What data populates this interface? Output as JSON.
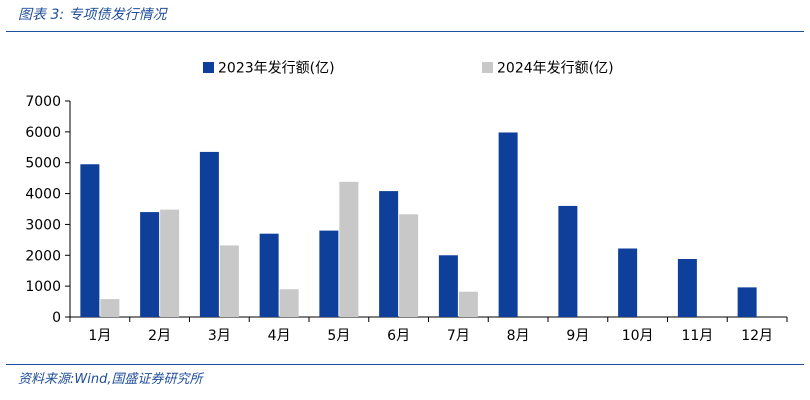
{
  "figure": {
    "title": "图表 3:  专项债发行情况",
    "source": "资料来源:Wind,国盛证券研究所"
  },
  "chart_data": {
    "type": "bar",
    "categories": [
      "1月",
      "2月",
      "3月",
      "4月",
      "5月",
      "6月",
      "7月",
      "8月",
      "9月",
      "10月",
      "11月",
      "12月"
    ],
    "series": [
      {
        "name": "2023年发行额(亿)",
        "color": "#0d3f9b",
        "values": [
          4950,
          3400,
          5350,
          2700,
          2800,
          4080,
          2000,
          5980,
          3600,
          2220,
          1880,
          960
        ]
      },
      {
        "name": "2024年发行额(亿)",
        "color": "#c8c8c8",
        "values": [
          580,
          3480,
          2320,
          900,
          4380,
          3330,
          820,
          null,
          null,
          null,
          null,
          null
        ]
      }
    ],
    "yticks": [
      0,
      1000,
      2000,
      3000,
      4000,
      5000,
      6000,
      7000
    ],
    "ylim": [
      0,
      7000
    ],
    "grid": false,
    "legend": "top"
  }
}
